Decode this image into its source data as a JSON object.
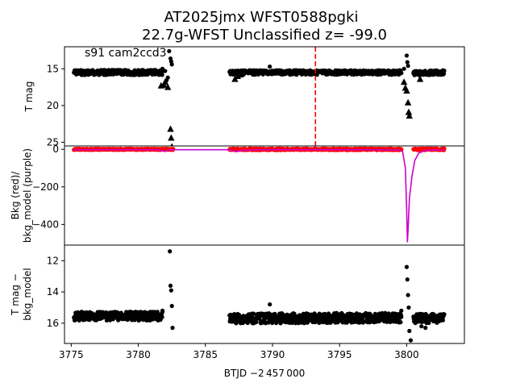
{
  "chart_data": {
    "type": "scatter",
    "title_line1": "AT2025jmx  WFST0588pgki",
    "title_line2": "22.7g-WFST Unclassified z= -99.0",
    "xlabel": "BTJD −2 457 000",
    "xlim": [
      3774.5,
      3804.3
    ],
    "xticks": [
      3775,
      3780,
      3785,
      3790,
      3795,
      3800
    ],
    "xtick_labels": [
      "3775",
      "3780",
      "3785",
      "3790",
      "3795",
      "3800"
    ],
    "marker_time": 3793.2,
    "marker_color": "#ff0000",
    "panels": [
      {
        "ylabel": [
          "T mag"
        ],
        "ylim": [
          25.5,
          12.0
        ],
        "inverted": true,
        "yticks": [
          15,
          20,
          25
        ],
        "ytick_labels": [
          "15",
          "20",
          "25"
        ],
        "annotation": "s91 cam2ccd3",
        "series": [
          {
            "kind": "band",
            "color": "#000000",
            "segments": [
              {
                "x": [
                  3775.2,
                  3781.8
                ],
                "y": [
                  15.5,
                  15.5
                ],
                "spread": 0.35
              },
              {
                "x": [
                  3786.8,
                  3799.6
                ],
                "y": [
                  15.5,
                  15.5
                ],
                "spread": 0.3
              },
              {
                "x": [
                  3800.5,
                  3802.8
                ],
                "y": [
                  15.6,
                  15.5
                ],
                "spread": 0.3
              }
            ]
          },
          {
            "kind": "points",
            "color": "#000000",
            "points": [
              [
                3782.3,
                12.6
              ],
              [
                3782.4,
                13.6
              ],
              [
                3782.45,
                14.0
              ],
              [
                3782.5,
                14.4
              ],
              [
                3781.8,
                15.0
              ],
              [
                3782.0,
                15.3
              ],
              [
                3789.8,
                14.7
              ],
              [
                3800.0,
                13.2
              ],
              [
                3800.05,
                14.1
              ],
              [
                3800.1,
                14.6
              ],
              [
                3799.8,
                15.0
              ],
              [
                3799.5,
                15.2
              ],
              [
                3782.1,
                16.6
              ],
              [
                3782.2,
                16.2
              ]
            ]
          },
          {
            "kind": "triangles",
            "color": "#000000",
            "points": [
              [
                3781.7,
                17.3
              ],
              [
                3781.9,
                17.2
              ],
              [
                3782.0,
                16.8
              ],
              [
                3782.2,
                17.5
              ],
              [
                3782.4,
                23.2
              ],
              [
                3782.45,
                24.4
              ],
              [
                3782.5,
                25.6
              ],
              [
                3787.2,
                16.4
              ],
              [
                3787.4,
                16.0
              ],
              [
                3787.6,
                15.8
              ],
              [
                3799.8,
                16.8
              ],
              [
                3800.0,
                18.0
              ],
              [
                3800.1,
                19.6
              ],
              [
                3800.15,
                20.9
              ],
              [
                3800.2,
                21.4
              ],
              [
                3801.0,
                16.4
              ],
              [
                3799.9,
                17.6
              ]
            ]
          }
        ]
      },
      {
        "ylabel": [
          "Bkg (red)/",
          "bkg_model (purple)"
        ],
        "ylim": [
          -510,
          18
        ],
        "inverted": false,
        "yticks": [
          0,
          -200,
          -400
        ],
        "ytick_labels": [
          "0",
          "−200",
          "−400"
        ],
        "series": [
          {
            "kind": "bkgpoints",
            "color": "#ff0000",
            "segments": [
              {
                "x": [
                  3775.2,
                  3782.6
                ],
                "y": 0,
                "spread": 3
              },
              {
                "x": [
                  3786.8,
                  3799.6
                ],
                "y": 0,
                "spread": 4
              },
              {
                "x": [
                  3800.5,
                  3802.8
                ],
                "y": 0,
                "spread": 4
              }
            ]
          },
          {
            "kind": "line",
            "color": "#cc00cc",
            "points": [
              [
                3775.2,
                -2
              ],
              [
                3776,
                -2
              ],
              [
                3778,
                -2
              ],
              [
                3780,
                -2
              ],
              [
                3781.5,
                -3
              ],
              [
                3781.8,
                -8
              ],
              [
                3782.0,
                -12
              ],
              [
                3782.1,
                -6
              ],
              [
                3782.3,
                -3
              ],
              [
                3782.6,
                -2
              ],
              [
                3784,
                -2
              ],
              [
                3786.7,
                -2
              ],
              [
                3787.0,
                -6
              ],
              [
                3787.3,
                -12
              ],
              [
                3787.6,
                -7
              ],
              [
                3788.2,
                -4
              ],
              [
                3790,
                -2
              ],
              [
                3795,
                -2
              ],
              [
                3799.3,
                -3
              ],
              [
                3799.7,
                -12
              ],
              [
                3799.9,
                -100
              ],
              [
                3800.0,
                -320
              ],
              [
                3800.05,
                -495
              ],
              [
                3800.1,
                -430
              ],
              [
                3800.2,
                -260
              ],
              [
                3800.4,
                -140
              ],
              [
                3800.6,
                -60
              ],
              [
                3800.9,
                -20
              ],
              [
                3801.3,
                -8
              ],
              [
                3802.0,
                -4
              ],
              [
                3802.8,
                -3
              ]
            ]
          }
        ]
      },
      {
        "ylabel": [
          "T mag −",
          "bkg_model"
        ],
        "ylim": [
          17.3,
          11.0
        ],
        "inverted": true,
        "yticks": [
          12,
          14,
          16
        ],
        "ytick_labels": [
          "12",
          "14",
          "16"
        ],
        "series": [
          {
            "kind": "band",
            "color": "#000000",
            "segments": [
              {
                "x": [
                  3775.2,
                  3781.8
                ],
                "y": [
                  15.55,
                  15.55
                ],
                "spread": 0.28
              },
              {
                "x": [
                  3786.8,
                  3799.6
                ],
                "y": [
                  15.7,
                  15.65
                ],
                "spread": 0.32
              },
              {
                "x": [
                  3800.5,
                  3802.8
                ],
                "y": [
                  15.7,
                  15.7
                ],
                "spread": 0.3
              }
            ]
          },
          {
            "kind": "points",
            "color": "#000000",
            "points": [
              [
                3782.35,
                11.4
              ],
              [
                3782.4,
                13.6
              ],
              [
                3782.45,
                13.9
              ],
              [
                3782.5,
                14.9
              ],
              [
                3782.55,
                16.3
              ],
              [
                3781.8,
                15.2
              ],
              [
                3789.8,
                14.8
              ],
              [
                3800.0,
                12.4
              ],
              [
                3800.05,
                13.2
              ],
              [
                3800.1,
                14.2
              ],
              [
                3800.15,
                15.0
              ],
              [
                3800.2,
                16.5
              ],
              [
                3800.3,
                17.1
              ],
              [
                3799.6,
                15.2
              ],
              [
                3801.1,
                16.2
              ],
              [
                3801.4,
                16.3
              ]
            ]
          }
        ]
      }
    ]
  }
}
